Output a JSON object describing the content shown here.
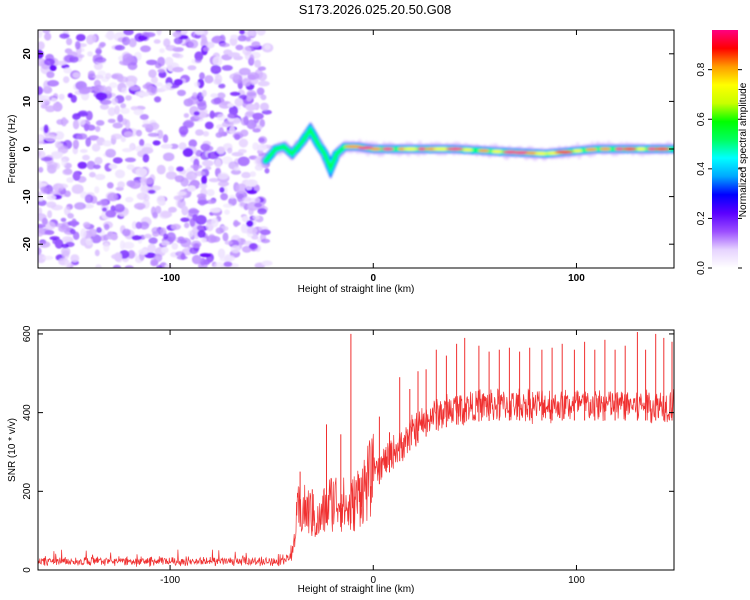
{
  "title": "S173.2026.025.20.50.G08",
  "chart_data": [
    {
      "type": "heatmap",
      "name": "spectrogram",
      "xlabel": "Height of straight line (km)",
      "ylabel": "Frequency (Hz)",
      "xlim": [
        -165,
        148
      ],
      "ylim": [
        -25,
        25
      ],
      "xticks": [
        -100,
        0,
        100
      ],
      "yticks": [
        -20,
        -10,
        0,
        10,
        20
      ],
      "xtick_labels": [
        "-100",
        "0",
        "100"
      ],
      "ytick_labels": [
        "-20",
        "-10",
        "0",
        "10",
        "20"
      ],
      "noise_region_x": [
        -165,
        -52
      ],
      "signal_track": [
        {
          "x": -53,
          "y": -2.5
        },
        {
          "x": -48,
          "y": 0
        },
        {
          "x": -44,
          "y": 0.5
        },
        {
          "x": -40,
          "y": -1
        },
        {
          "x": -35,
          "y": 1.5
        },
        {
          "x": -31,
          "y": 4
        },
        {
          "x": -27,
          "y": 1
        },
        {
          "x": -24,
          "y": -1
        },
        {
          "x": -21,
          "y": -4
        },
        {
          "x": -18,
          "y": -1
        },
        {
          "x": -14,
          "y": 0.5
        },
        {
          "x": -8,
          "y": 0.5
        },
        {
          "x": 0,
          "y": 0
        },
        {
          "x": 40,
          "y": 0
        },
        {
          "x": 60,
          "y": -0.5
        },
        {
          "x": 85,
          "y": -1
        },
        {
          "x": 110,
          "y": 0
        },
        {
          "x": 148,
          "y": 0
        }
      ],
      "colorbar": {
        "label": "Normalized spectral amplitude",
        "range": [
          0,
          0.96
        ],
        "ticks": [
          0.0,
          0.2,
          0.4,
          0.6,
          0.8
        ],
        "tick_labels": [
          "0.0",
          "0.2",
          "0.4",
          "0.6",
          "0.8"
        ],
        "colors": [
          "#ffffff",
          "#e6d3ff",
          "#9b4dff",
          "#5a00ff",
          "#0000ff",
          "#00a8ff",
          "#00ffff",
          "#00ff60",
          "#00ff00",
          "#c8ff00",
          "#ffff00",
          "#ff9c00",
          "#ff0000",
          "#ff0080"
        ]
      }
    },
    {
      "type": "line",
      "name": "snr",
      "xlabel": "Height of straight line (km)",
      "ylabel": "SNR (10 * v/v)",
      "xlim": [
        -165,
        148
      ],
      "ylim": [
        0,
        610
      ],
      "xticks": [
        -100,
        0,
        100
      ],
      "yticks": [
        0,
        200,
        400,
        600
      ],
      "xtick_labels": [
        "-100",
        "0",
        "100"
      ],
      "ytick_labels": [
        "0",
        "200",
        "400",
        "600"
      ],
      "color": "#f03030",
      "profile": [
        {
          "x": -165,
          "y": 22
        },
        {
          "x": -45,
          "y": 22
        },
        {
          "x": -40,
          "y": 35
        },
        {
          "x": -37,
          "y": 150
        },
        {
          "x": -32,
          "y": 150
        },
        {
          "x": -27,
          "y": 120
        },
        {
          "x": -22,
          "y": 170
        },
        {
          "x": -17,
          "y": 180
        },
        {
          "x": -12,
          "y": 150
        },
        {
          "x": -6,
          "y": 200
        },
        {
          "x": 0,
          "y": 240
        },
        {
          "x": 10,
          "y": 300
        },
        {
          "x": 20,
          "y": 355
        },
        {
          "x": 30,
          "y": 395
        },
        {
          "x": 45,
          "y": 415
        },
        {
          "x": 60,
          "y": 420
        },
        {
          "x": 80,
          "y": 420
        },
        {
          "x": 100,
          "y": 420
        },
        {
          "x": 120,
          "y": 420
        },
        {
          "x": 148,
          "y": 420
        }
      ],
      "spikes": [
        {
          "x": -36,
          "y": 250
        },
        {
          "x": -30,
          "y": 205
        },
        {
          "x": -23,
          "y": 370
        },
        {
          "x": -16,
          "y": 345
        },
        {
          "x": -11,
          "y": 600
        },
        {
          "x": -6,
          "y": 235
        },
        {
          "x": 3,
          "y": 390
        },
        {
          "x": 8,
          "y": 350
        },
        {
          "x": 13,
          "y": 490
        },
        {
          "x": 18,
          "y": 460
        },
        {
          "x": 22,
          "y": 505
        },
        {
          "x": 26,
          "y": 510
        },
        {
          "x": 31,
          "y": 560
        },
        {
          "x": 36,
          "y": 545
        },
        {
          "x": 41,
          "y": 575
        },
        {
          "x": 45,
          "y": 590
        },
        {
          "x": 52,
          "y": 570
        },
        {
          "x": 57,
          "y": 555
        },
        {
          "x": 62,
          "y": 560
        },
        {
          "x": 67,
          "y": 565
        },
        {
          "x": 72,
          "y": 555
        },
        {
          "x": 77,
          "y": 565
        },
        {
          "x": 83,
          "y": 560
        },
        {
          "x": 88,
          "y": 565
        },
        {
          "x": 93,
          "y": 575
        },
        {
          "x": 99,
          "y": 560
        },
        {
          "x": 104,
          "y": 580
        },
        {
          "x": 109,
          "y": 560
        },
        {
          "x": 114,
          "y": 585
        },
        {
          "x": 119,
          "y": 560
        },
        {
          "x": 124,
          "y": 570
        },
        {
          "x": 130,
          "y": 605
        },
        {
          "x": 134,
          "y": 560
        },
        {
          "x": 139,
          "y": 600
        },
        {
          "x": 143,
          "y": 590
        },
        {
          "x": 147,
          "y": 580
        }
      ]
    }
  ]
}
